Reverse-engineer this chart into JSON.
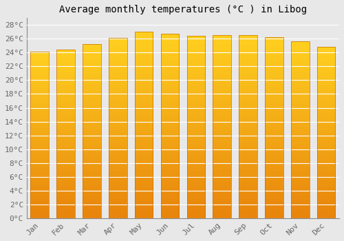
{
  "title": "Average monthly temperatures (°C ) in Libog",
  "months": [
    "Jan",
    "Feb",
    "Mar",
    "Apr",
    "May",
    "Jun",
    "Jul",
    "Aug",
    "Sep",
    "Oct",
    "Nov",
    "Dec"
  ],
  "values": [
    24.1,
    24.4,
    25.2,
    26.1,
    27.0,
    26.7,
    26.4,
    26.5,
    26.5,
    26.2,
    25.6,
    24.8
  ],
  "bar_color_bottom": "#E8840C",
  "bar_color_top": "#FFD020",
  "bar_edge_color": "#C87000",
  "ylim": [
    0,
    29
  ],
  "yticks": [
    0,
    2,
    4,
    6,
    8,
    10,
    12,
    14,
    16,
    18,
    20,
    22,
    24,
    26,
    28
  ],
  "ytick_labels": [
    "0°C",
    "2°C",
    "4°C",
    "6°C",
    "8°C",
    "10°C",
    "12°C",
    "14°C",
    "16°C",
    "18°C",
    "20°C",
    "22°C",
    "24°C",
    "26°C",
    "28°C"
  ],
  "background_color": "#e8e8e8",
  "plot_bg_color": "#e8e8e8",
  "grid_color": "#ffffff",
  "title_fontsize": 10,
  "tick_fontsize": 8,
  "bar_width": 0.7,
  "title_font_family": "monospace",
  "tick_font_family": "monospace"
}
